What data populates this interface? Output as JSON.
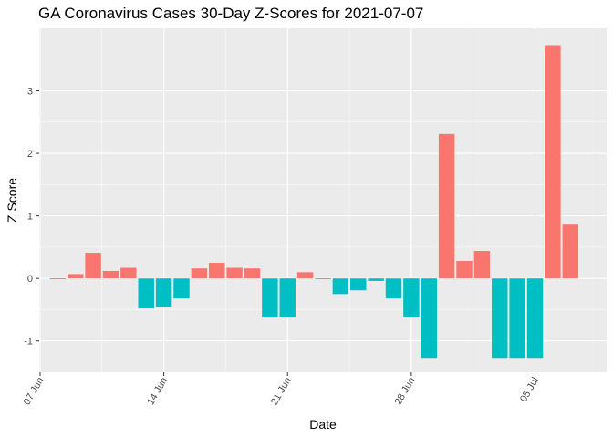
{
  "chart_data": {
    "type": "bar",
    "title": "GA Coronavirus Cases 30-Day Z-Scores for 2021-07-07",
    "xlabel": "Date",
    "ylabel": "Z Score",
    "x_ticks": [
      {
        "date": "2021-06-07",
        "label": "07 Jun"
      },
      {
        "date": "2021-06-14",
        "label": "14 Jun"
      },
      {
        "date": "2021-06-21",
        "label": "21 Jun"
      },
      {
        "date": "2021-06-28",
        "label": "28 Jun"
      },
      {
        "date": "2021-07-05",
        "label": "05 Jul"
      }
    ],
    "y_ticks": [
      -1,
      0,
      1,
      2,
      3
    ],
    "ylim": [
      -1.5,
      4.0
    ],
    "xlim": [
      "2021-06-06",
      "2021-07-09"
    ],
    "grid": true,
    "legend": "none",
    "colors": {
      "positive": "#F8766D",
      "negative": "#00BFC4",
      "panel": "#EBEBEB",
      "grid": "#FFFFFF"
    },
    "bars": [
      {
        "date": "2021-06-08",
        "value": -0.01
      },
      {
        "date": "2021-06-09",
        "value": 0.07
      },
      {
        "date": "2021-06-10",
        "value": 0.41
      },
      {
        "date": "2021-06-11",
        "value": 0.12
      },
      {
        "date": "2021-06-12",
        "value": 0.17
      },
      {
        "date": "2021-06-13",
        "value": -0.48
      },
      {
        "date": "2021-06-14",
        "value": -0.45
      },
      {
        "date": "2021-06-15",
        "value": -0.32
      },
      {
        "date": "2021-06-16",
        "value": 0.16
      },
      {
        "date": "2021-06-17",
        "value": 0.25
      },
      {
        "date": "2021-06-18",
        "value": 0.17
      },
      {
        "date": "2021-06-19",
        "value": 0.16
      },
      {
        "date": "2021-06-20",
        "value": -0.61
      },
      {
        "date": "2021-06-21",
        "value": -0.61
      },
      {
        "date": "2021-06-22",
        "value": 0.1
      },
      {
        "date": "2021-06-23",
        "value": -0.01
      },
      {
        "date": "2021-06-24",
        "value": -0.25
      },
      {
        "date": "2021-06-25",
        "value": -0.19
      },
      {
        "date": "2021-06-26",
        "value": -0.04
      },
      {
        "date": "2021-06-27",
        "value": -0.32
      },
      {
        "date": "2021-06-28",
        "value": -0.61
      },
      {
        "date": "2021-06-29",
        "value": -1.27
      },
      {
        "date": "2021-06-30",
        "value": 2.31
      },
      {
        "date": "2021-07-01",
        "value": 0.28
      },
      {
        "date": "2021-07-02",
        "value": 0.44
      },
      {
        "date": "2021-07-03",
        "value": -1.27
      },
      {
        "date": "2021-07-04",
        "value": -1.27
      },
      {
        "date": "2021-07-05",
        "value": -1.27
      },
      {
        "date": "2021-07-06",
        "value": 3.73
      },
      {
        "date": "2021-07-07",
        "value": 0.86
      }
    ]
  }
}
